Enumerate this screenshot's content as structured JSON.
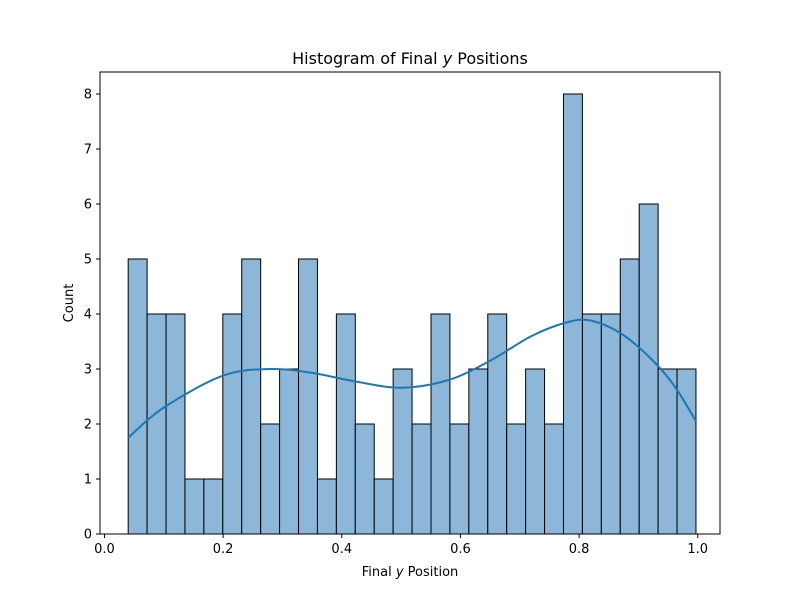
{
  "chart_data": {
    "type": "bar",
    "title": "Histogram of Final y Positions",
    "title_parts": [
      "Histogram of Final ",
      "y",
      " Positions"
    ],
    "xlabel": "Final y Position",
    "xlabel_parts": [
      "Final ",
      "y",
      " Position"
    ],
    "ylabel": "Count",
    "xlim": [
      -0.0075,
      1.0375
    ],
    "ylim": [
      0,
      8.4
    ],
    "xticks": [
      0.0,
      0.2,
      0.4,
      0.6,
      0.8,
      1.0
    ],
    "xtick_labels": [
      "0.0",
      "0.2",
      "0.4",
      "0.6",
      "0.8",
      "1.0"
    ],
    "yticks": [
      0,
      1,
      2,
      3,
      4,
      5,
      6,
      7,
      8
    ],
    "ytick_labels": [
      "0",
      "1",
      "2",
      "3",
      "4",
      "5",
      "6",
      "7",
      "8"
    ],
    "grid": false,
    "bin_edges": [
      0.04,
      0.0719,
      0.1038,
      0.1357,
      0.1676,
      0.1995,
      0.2314,
      0.2633,
      0.2952,
      0.3271,
      0.359,
      0.3909,
      0.4228,
      0.4547,
      0.4866,
      0.5185,
      0.5504,
      0.5823,
      0.6142,
      0.6461,
      0.678,
      0.7099,
      0.7418,
      0.7737,
      0.8056,
      0.8375,
      0.8694,
      0.9013,
      0.9332,
      0.9651,
      0.997
    ],
    "values": [
      5,
      4,
      4,
      1,
      1,
      4,
      5,
      2,
      3,
      5,
      1,
      4,
      2,
      1,
      3,
      2,
      4,
      2,
      3,
      4,
      2,
      3,
      2,
      8,
      4,
      4,
      5,
      6,
      3,
      3
    ],
    "kde_x": [
      0.04,
      0.1,
      0.2,
      0.28,
      0.35,
      0.42,
      0.5,
      0.58,
      0.65,
      0.72,
      0.78,
      0.82,
      0.87,
      0.92,
      0.96,
      0.997
    ],
    "kde_y": [
      1.75,
      2.3,
      2.88,
      3.0,
      2.93,
      2.78,
      2.66,
      2.8,
      3.15,
      3.6,
      3.85,
      3.88,
      3.65,
      3.2,
      2.7,
      2.05
    ]
  }
}
